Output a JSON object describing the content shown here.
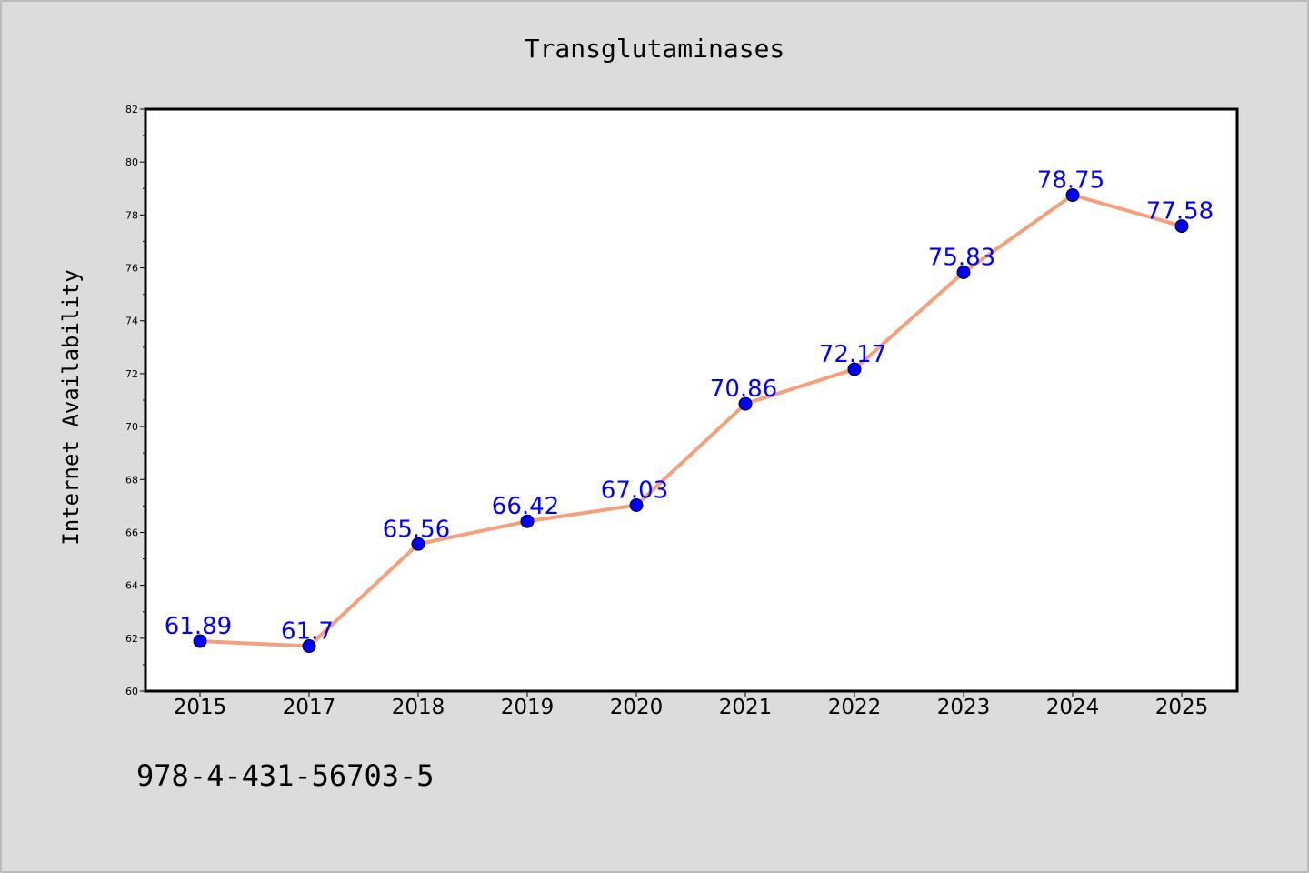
{
  "chart_data": {
    "type": "line",
    "title": "Transglutaminases",
    "xlabel": "",
    "ylabel": "Internet Availability",
    "categories": [
      "2015",
      "2017",
      "2018",
      "2019",
      "2020",
      "2021",
      "2022",
      "2023",
      "2024",
      "2025"
    ],
    "series": [
      {
        "values": [
          61.89,
          61.7,
          65.56,
          66.42,
          67.03,
          70.86,
          72.17,
          75.83,
          78.75,
          77.58
        ],
        "labels": [
          "61.89",
          "61.7",
          "65.56",
          "66.42",
          "67.03",
          "70.86",
          "72.17",
          "75.83",
          "78.75",
          "77.58"
        ]
      }
    ],
    "ylim": [
      60,
      82
    ],
    "yticks": [
      60,
      62,
      64,
      66,
      68,
      70,
      72,
      74,
      76,
      78,
      80,
      82
    ],
    "grid": false,
    "legend": "none",
    "colors": {
      "line": "#f4a07a",
      "marker": "#0000ff",
      "label": "#0000ff",
      "background": "#dcdcdc",
      "plot_area": "#ffffff"
    }
  },
  "footer": {
    "isbn": "978-4-431-56703-5"
  }
}
